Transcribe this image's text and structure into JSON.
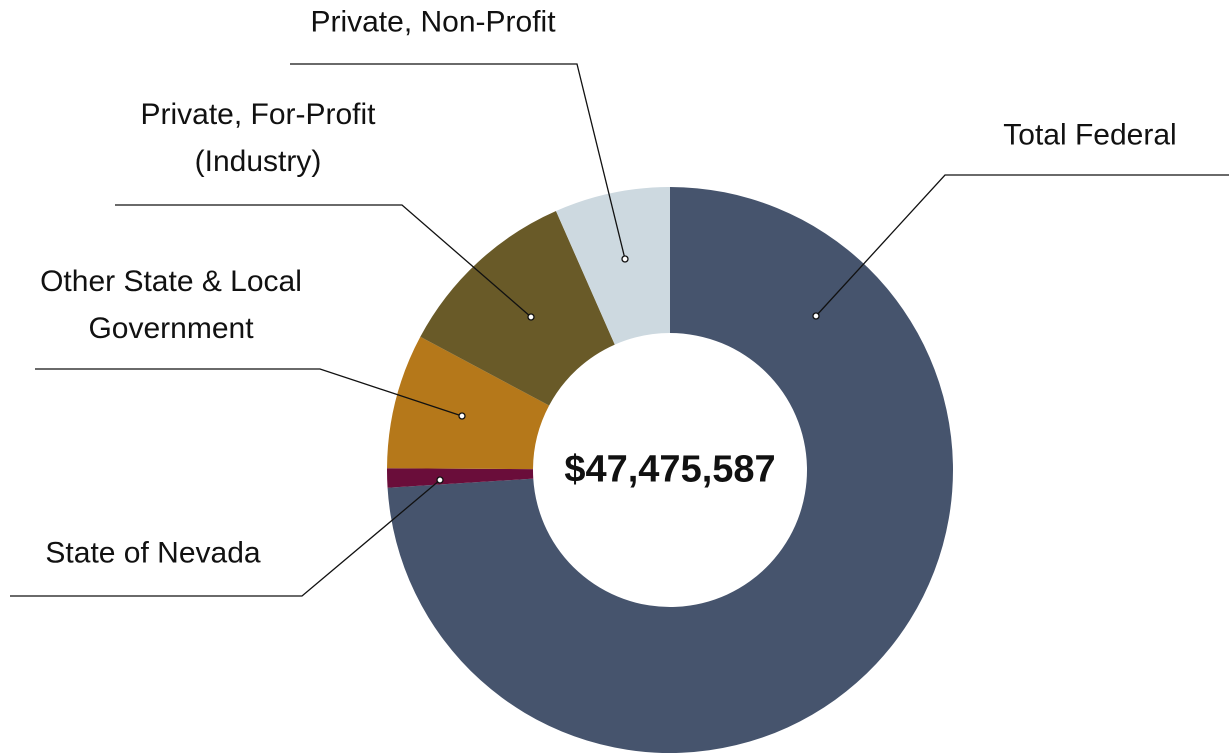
{
  "chart_data": {
    "type": "donut",
    "center_label": "$47,475,587",
    "categories": [
      "Total Federal",
      "State of Nevada",
      "Other State & Local Government",
      "Private, For-Profit (Industry)",
      "Private, Non-Profit"
    ],
    "values": [
      74.0,
      1.1,
      7.7,
      10.6,
      6.6
    ],
    "colors": [
      "#46546d",
      "#6a0d3a",
      "#b5781a",
      "#695a28",
      "#cdd9e0"
    ]
  }
}
